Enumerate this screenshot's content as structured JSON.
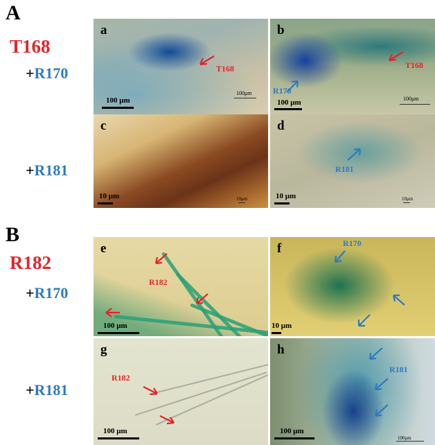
{
  "section_a": {
    "letter": "A",
    "strain": "T168",
    "rows": [
      {
        "plus": "+",
        "code": "R170"
      },
      {
        "plus": "+",
        "code": "R181"
      }
    ]
  },
  "section_b": {
    "letter": "B",
    "strain": "R182",
    "rows": [
      {
        "plus": "+",
        "code": "R170"
      },
      {
        "plus": "+",
        "code": "R181"
      }
    ]
  },
  "panels": {
    "a": {
      "tag": "a",
      "labels": [
        "T168"
      ],
      "scale": "100 μm",
      "scale_small": "100μm"
    },
    "b": {
      "tag": "b",
      "labels": [
        "R170",
        "T168"
      ],
      "scale": "100 μm",
      "scale_small": "100μm"
    },
    "c": {
      "tag": "c",
      "scale": "10 μm",
      "scale_small": "10μm"
    },
    "d": {
      "tag": "d",
      "labels": [
        "R181"
      ],
      "scale": "10 μm",
      "scale_small": "10μm"
    },
    "e": {
      "tag": "e",
      "labels": [
        "R182"
      ],
      "scale": "100 μm"
    },
    "f": {
      "tag": "f",
      "labels": [
        "R170"
      ],
      "scale": "10 μm"
    },
    "g": {
      "tag": "g",
      "labels": [
        "R182"
      ],
      "scale": "100 μm"
    },
    "h": {
      "tag": "h",
      "labels": [
        "R181"
      ],
      "scale": "100 μm",
      "scale_small": "100μm"
    }
  },
  "colors": {
    "red": "#e0262b",
    "blue": "#2e7bbf"
  }
}
